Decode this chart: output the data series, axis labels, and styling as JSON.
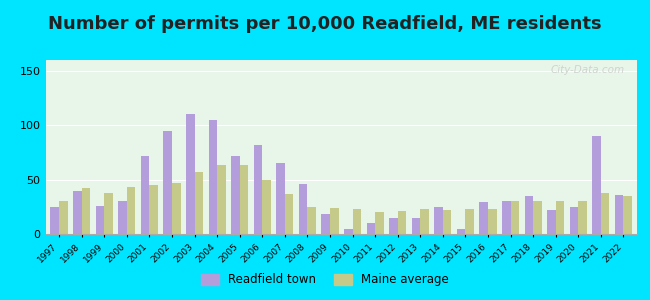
{
  "title": "Number of permits per 10,000 Readfield, ME residents",
  "years": [
    1997,
    1998,
    1999,
    2000,
    2001,
    2002,
    2003,
    2004,
    2005,
    2006,
    2007,
    2008,
    2009,
    2010,
    2011,
    2012,
    2013,
    2014,
    2015,
    2016,
    2017,
    2018,
    2019,
    2020,
    2021,
    2022
  ],
  "readfield": [
    25,
    40,
    26,
    30,
    72,
    95,
    110,
    105,
    72,
    82,
    65,
    46,
    18,
    5,
    10,
    15,
    15,
    25,
    5,
    29,
    30,
    35,
    22,
    25,
    90,
    36
  ],
  "maine_avg": [
    30,
    42,
    38,
    43,
    45,
    47,
    57,
    63,
    63,
    50,
    37,
    25,
    24,
    23,
    20,
    21,
    23,
    22,
    23,
    23,
    30,
    30,
    30,
    30,
    38,
    35
  ],
  "readfield_color": "#b39ddb",
  "maine_color": "#c5c98a",
  "background_outer": "#00e5ff",
  "background_plot": "#e8f5e9",
  "ylim": [
    0,
    160
  ],
  "yticks": [
    0,
    50,
    100,
    150
  ],
  "title_fontsize": 13,
  "legend_label_readfield": "Readfield town",
  "legend_label_maine": "Maine average",
  "watermark": "City-Data.com"
}
